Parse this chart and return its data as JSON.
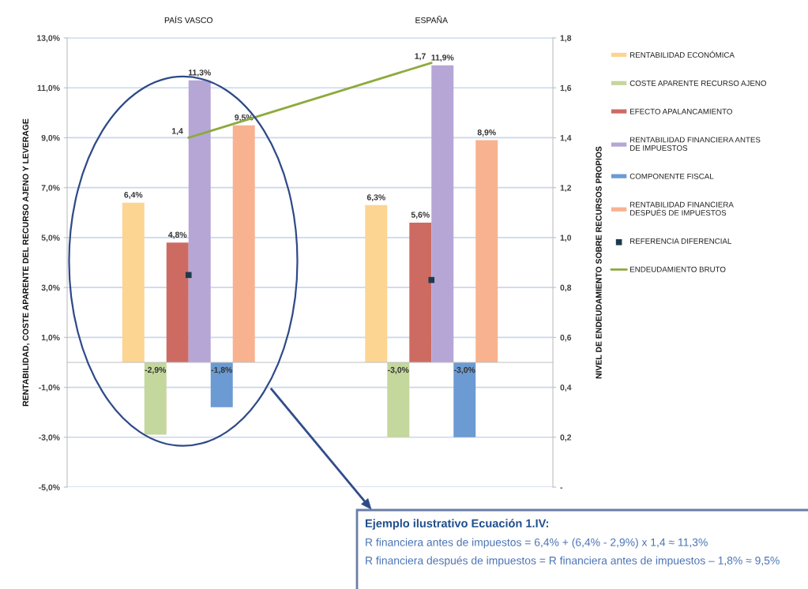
{
  "chart_data": {
    "type": "bar",
    "categories": [
      "PAÍS VASCO",
      "ESPAÑA"
    ],
    "ylabel": "RENTABILIDAD, COSTE APARENTE DEL RECURSO AJENO Y LEVERAGE",
    "y2label": "NIVEL DE ENDEUDAMIENTO SOBRE RECURSOS PROPIOS",
    "ylim": [
      -5,
      13
    ],
    "yticks": [
      {
        "value": -5,
        "label": "-5,0%"
      },
      {
        "value": -3,
        "label": "-3,0%"
      },
      {
        "value": -1,
        "label": "-1,0%"
      },
      {
        "value": 1,
        "label": "1,0%"
      },
      {
        "value": 3,
        "label": "3,0%"
      },
      {
        "value": 5,
        "label": "5,0%"
      },
      {
        "value": 7,
        "label": "7,0%"
      },
      {
        "value": 9,
        "label": "9,0%"
      },
      {
        "value": 11,
        "label": "11,0%"
      },
      {
        "value": 13,
        "label": "13,0%"
      }
    ],
    "y2lim": [
      0,
      1.8
    ],
    "y2ticks": [
      {
        "value": 0,
        "label": "-"
      },
      {
        "value": 0.2,
        "label": "0,2"
      },
      {
        "value": 0.4,
        "label": "0,4"
      },
      {
        "value": 0.6,
        "label": "0,6"
      },
      {
        "value": 0.8,
        "label": "0,8"
      },
      {
        "value": 1.0,
        "label": "1,0"
      },
      {
        "value": 1.2,
        "label": "1,2"
      },
      {
        "value": 1.4,
        "label": "1,4"
      },
      {
        "value": 1.6,
        "label": "1,6"
      },
      {
        "value": 1.8,
        "label": "1,8"
      }
    ],
    "grid": "y",
    "legend": "right",
    "series": [
      {
        "name": "RENTABILIDAD ECONÓMICA",
        "color": "#fcd592",
        "values": [
          6.4,
          6.3
        ],
        "value_labels": [
          "6,4%",
          "6,3%"
        ]
      },
      {
        "name": "COSTE APARENTE RECURSO AJENO",
        "color": "#c4d79c",
        "values": [
          -2.9,
          -3.0
        ],
        "value_labels": [
          "-2,9%",
          "-3,0%"
        ]
      },
      {
        "name": "EFECTO APALANCAMIENTO",
        "color": "#cd6b62",
        "values": [
          4.8,
          5.6
        ],
        "value_labels": [
          "4,8%",
          "5,6%"
        ]
      },
      {
        "name": "RENTABILIDAD FINANCIERA ANTES\nDE IMPUESTOS",
        "color": "#b6a6d6",
        "values": [
          11.3,
          11.9
        ],
        "value_labels": [
          "11,3%",
          "11,9%"
        ]
      },
      {
        "name": "COMPONENTE FISCAL",
        "color": "#6b9bd2",
        "values": [
          -1.8,
          -3.0
        ],
        "value_labels": [
          "-1,8%",
          "-3,0%"
        ]
      },
      {
        "name": "RENTABILIDAD FINANCIERA\nDESPUÉS DE IMPUESTOS",
        "color": "#f8b290",
        "values": [
          9.5,
          8.9
        ],
        "value_labels": [
          "9,5%",
          "8,9%"
        ]
      },
      {
        "name": "REFERENCIA DIFERENCIAL",
        "type": "scatter",
        "marker": "square",
        "color": "#1e3a4c",
        "x": [
          "PAÍS VASCO",
          "ESPAÑA"
        ],
        "values": [
          3.5,
          3.3
        ]
      },
      {
        "name": "ENDEUDAMIENTO BRUTO",
        "type": "line",
        "axis": "y2",
        "color": "#8eaa3e",
        "values": [
          1.4,
          1.7
        ],
        "value_labels": [
          "1,4",
          "1,7"
        ]
      }
    ],
    "annotations": [
      "Ejemplo ilustrativo Ecuación 1.IV:",
      "R financiera antes de impuestos = 6,4% + (6,4% - 2,9%) x 1,4 ≈ 11,3%",
      "R financiera después de impuestos = R financiera antes de impuestos – 1,8% ≈ 9,5%"
    ]
  }
}
